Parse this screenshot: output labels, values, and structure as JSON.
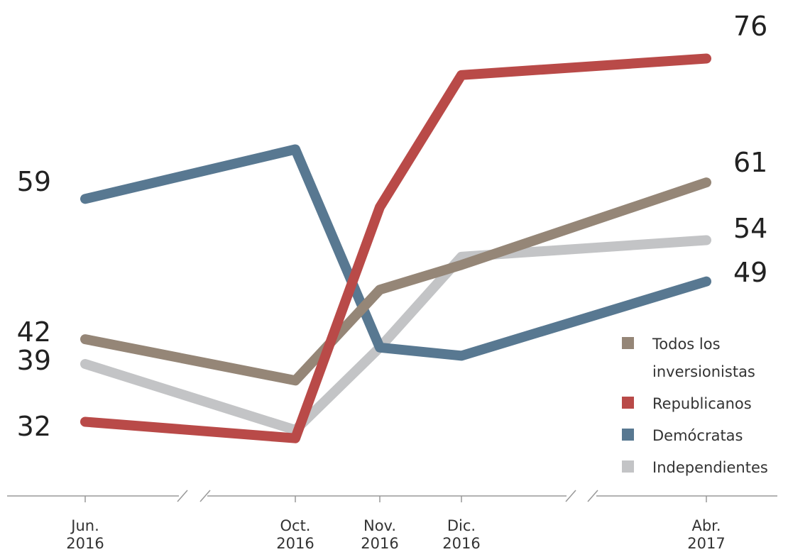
{
  "chart_data": {
    "type": "line",
    "x": [
      "Jun. 2016",
      "Oct. 2016",
      "Nov. 2016",
      "Dic. 2016",
      "Abr. 2017"
    ],
    "x_ticks": [
      {
        "line1": "Jun.",
        "line2": "2016"
      },
      {
        "line1": "Oct.",
        "line2": "2016"
      },
      {
        "line1": "Nov.",
        "line2": "2016"
      },
      {
        "line1": "Dic.",
        "line2": "2016"
      },
      {
        "line1": "Abr.",
        "line2": "2017"
      }
    ],
    "axis_breaks": [
      "between Jun. 2016 and Oct. 2016",
      "between Dic. 2016 and Abr. 2017"
    ],
    "ylim": [
      28,
      80
    ],
    "grid": false,
    "legend_placement": "bottom-right",
    "series": [
      {
        "name": "Todos los inversionistas",
        "color": "#958677",
        "values": [
          42,
          37,
          48,
          51,
          61
        ]
      },
      {
        "name": "Republicanos",
        "color": "#b94a48",
        "values": [
          32,
          30,
          58,
          74,
          76
        ]
      },
      {
        "name": "Demócratas",
        "color": "#587891",
        "values": [
          59,
          65,
          41,
          40,
          49
        ]
      },
      {
        "name": "Independientes",
        "color": "#c3c4c6",
        "values": [
          39,
          31,
          41,
          52,
          54
        ]
      }
    ],
    "start_labels": [
      "59",
      "42",
      "39",
      "32"
    ],
    "end_labels": [
      "76",
      "61",
      "54",
      "49"
    ]
  },
  "legend": {
    "items": [
      {
        "label": "Todos los inversionistas",
        "color": "#958677"
      },
      {
        "label": "Republicanos",
        "color": "#b94a48"
      },
      {
        "label": "Demócratas",
        "color": "#587891"
      },
      {
        "label": "Independientes",
        "color": "#c3c4c6"
      }
    ]
  }
}
